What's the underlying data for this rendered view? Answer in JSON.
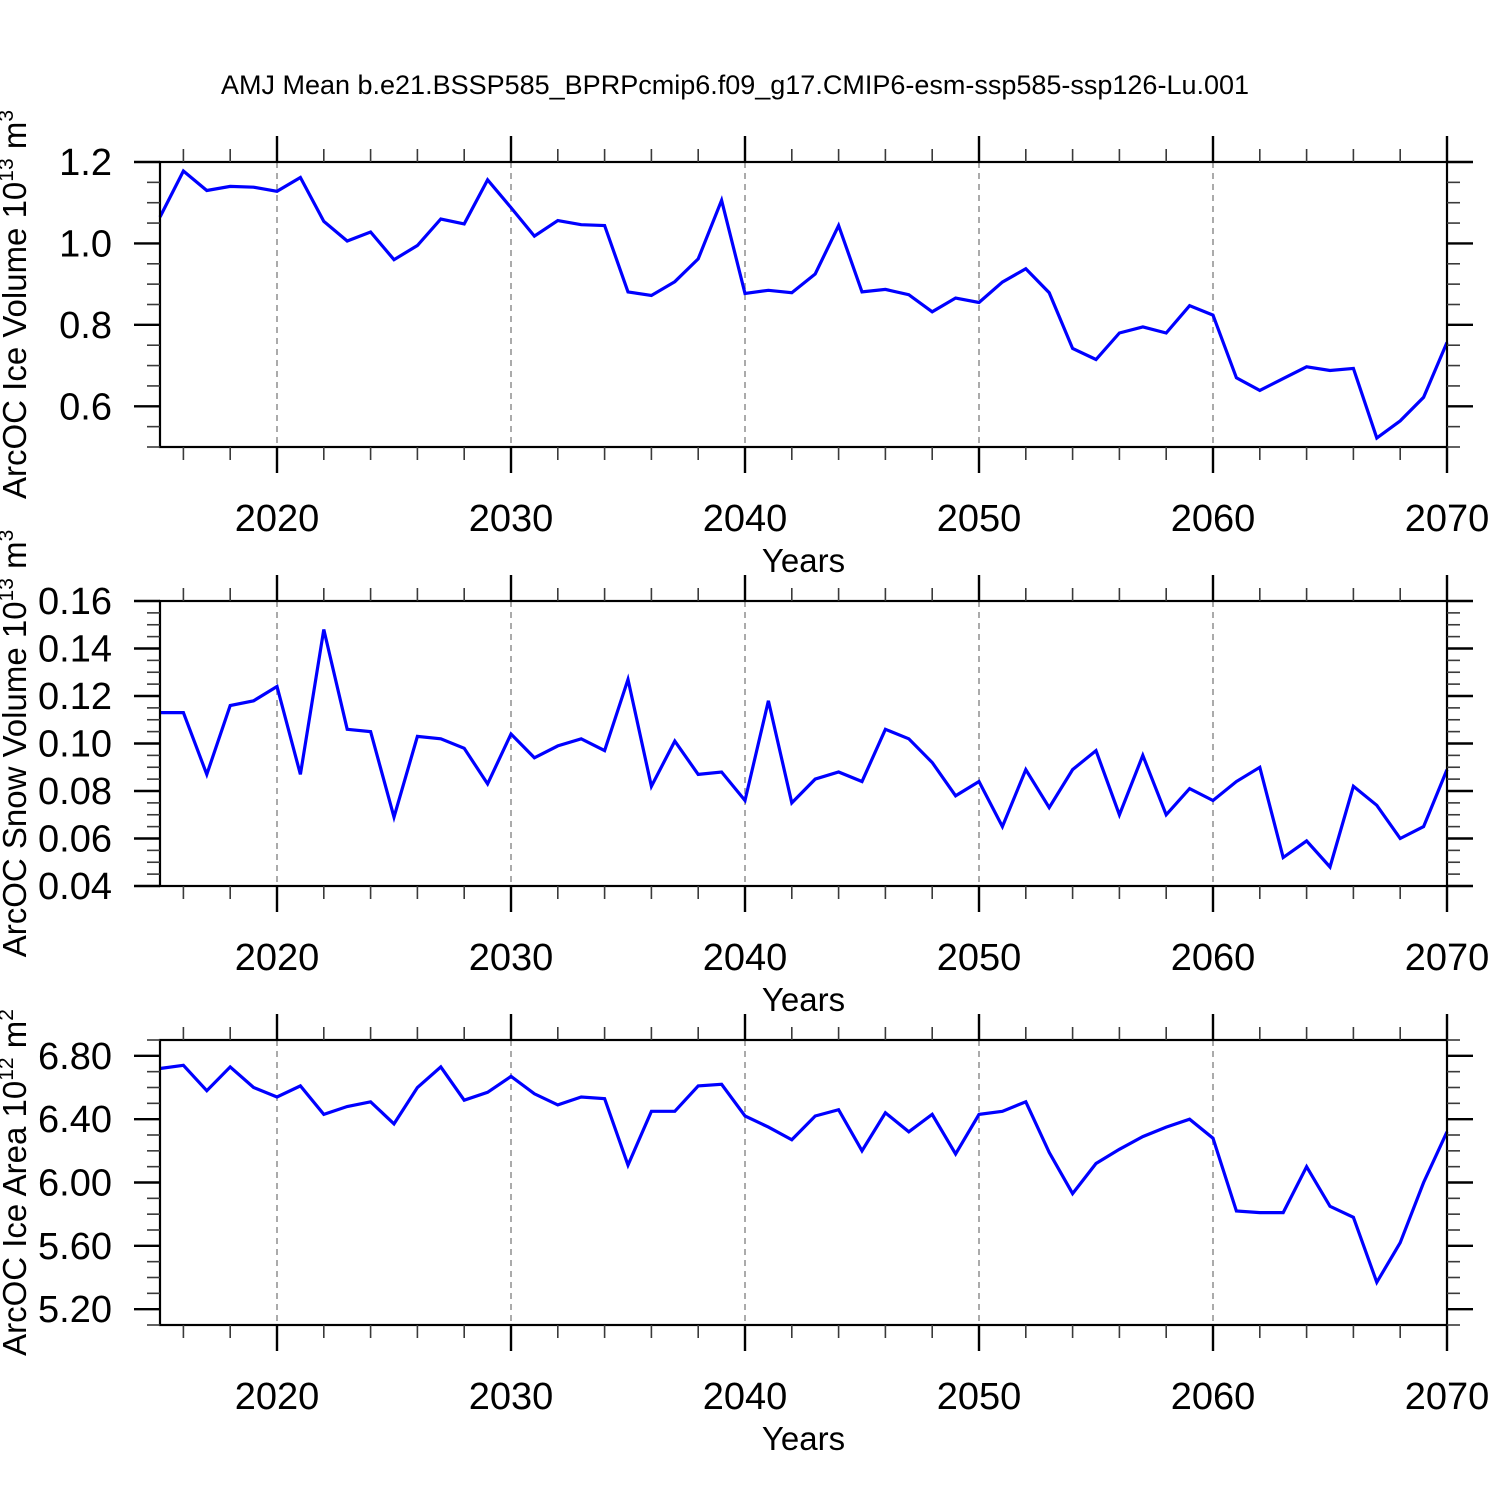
{
  "title": "AMJ Mean b.e21.BSSP585_BPRPcmip6.f09_g17.CMIP6-esm-ssp585-ssp126-Lu.001",
  "xlabel": "Years",
  "colors": {
    "line": "#0000ff",
    "grid": "#ababab",
    "axis": "#000000",
    "minor_tick": "#3a3a3a",
    "background": "#ffffff"
  },
  "chart_data": [
    {
      "type": "line",
      "panel": "ice-volume",
      "ylabel_parts": {
        "prefix": "ArcOC Ice Volume 10",
        "exp": "13",
        "unit": " m",
        "unit_exp": "3"
      },
      "xlabel": "Years",
      "xlim": [
        2015,
        2070
      ],
      "ylim": [
        0.5,
        1.2
      ],
      "yticks": [
        0.6,
        0.8,
        1.0,
        1.2
      ],
      "ytick_labels": [
        "0.6",
        "0.8",
        "1.0",
        "1.2"
      ],
      "y_minor_step": 0.05,
      "xticks": [
        2020,
        2030,
        2040,
        2050,
        2060,
        2070
      ],
      "xtick_labels": [
        "2020",
        "2030",
        "2040",
        "2050",
        "2060",
        "2070"
      ],
      "x_minor_step": 2,
      "gridlines_x": [
        2020,
        2030,
        2040,
        2050,
        2060
      ],
      "x": [
        2015,
        2016,
        2017,
        2018,
        2019,
        2020,
        2021,
        2022,
        2023,
        2024,
        2025,
        2026,
        2027,
        2028,
        2029,
        2030,
        2031,
        2032,
        2033,
        2034,
        2035,
        2036,
        2037,
        2038,
        2039,
        2040,
        2041,
        2042,
        2043,
        2044,
        2045,
        2046,
        2047,
        2048,
        2049,
        2050,
        2051,
        2052,
        2053,
        2054,
        2055,
        2056,
        2057,
        2058,
        2059,
        2060,
        2061,
        2062,
        2063,
        2064,
        2065,
        2066,
        2067,
        2068,
        2069,
        2070
      ],
      "values": [
        1.065,
        1.178,
        1.13,
        1.14,
        1.138,
        1.128,
        1.162,
        1.054,
        1.006,
        1.028,
        0.96,
        0.995,
        1.06,
        1.048,
        1.156,
        1.088,
        1.018,
        1.056,
        1.046,
        1.044,
        0.881,
        0.872,
        0.906,
        0.962,
        1.106,
        0.877,
        0.885,
        0.879,
        0.925,
        1.044,
        0.881,
        0.887,
        0.874,
        0.832,
        0.866,
        0.855,
        0.905,
        0.938,
        0.879,
        0.742,
        0.715,
        0.78,
        0.795,
        0.78,
        0.847,
        0.824,
        0.67,
        0.639,
        0.668,
        0.697,
        0.688,
        0.693,
        0.522,
        0.564,
        0.622,
        0.757
      ]
    },
    {
      "type": "line",
      "panel": "snow-volume",
      "ylabel_parts": {
        "prefix": "ArcOC Snow Volume 10",
        "exp": "13",
        "unit": " m",
        "unit_exp": "3"
      },
      "xlabel": "Years",
      "xlim": [
        2015,
        2070
      ],
      "ylim": [
        0.04,
        0.16
      ],
      "yticks": [
        0.04,
        0.06,
        0.08,
        0.1,
        0.12,
        0.14,
        0.16
      ],
      "ytick_labels": [
        "0.04",
        "0.06",
        "0.08",
        "0.10",
        "0.12",
        "0.14",
        "0.16"
      ],
      "y_minor_step": 0.005,
      "xticks": [
        2020,
        2030,
        2040,
        2050,
        2060,
        2070
      ],
      "xtick_labels": [
        "2020",
        "2030",
        "2040",
        "2050",
        "2060",
        "2070"
      ],
      "x_minor_step": 2,
      "gridlines_x": [
        2020,
        2030,
        2040,
        2050,
        2060
      ],
      "x": [
        2015,
        2016,
        2017,
        2018,
        2019,
        2020,
        2021,
        2022,
        2023,
        2024,
        2025,
        2026,
        2027,
        2028,
        2029,
        2030,
        2031,
        2032,
        2033,
        2034,
        2035,
        2036,
        2037,
        2038,
        2039,
        2040,
        2041,
        2042,
        2043,
        2044,
        2045,
        2046,
        2047,
        2048,
        2049,
        2050,
        2051,
        2052,
        2053,
        2054,
        2055,
        2056,
        2057,
        2058,
        2059,
        2060,
        2061,
        2062,
        2063,
        2064,
        2065,
        2066,
        2067,
        2068,
        2069,
        2070
      ],
      "values": [
        0.113,
        0.113,
        0.087,
        0.116,
        0.118,
        0.124,
        0.087,
        0.148,
        0.106,
        0.105,
        0.069,
        0.103,
        0.102,
        0.098,
        0.083,
        0.104,
        0.094,
        0.099,
        0.102,
        0.097,
        0.127,
        0.082,
        0.101,
        0.087,
        0.088,
        0.076,
        0.118,
        0.075,
        0.085,
        0.088,
        0.084,
        0.106,
        0.102,
        0.092,
        0.078,
        0.084,
        0.065,
        0.089,
        0.073,
        0.089,
        0.097,
        0.07,
        0.095,
        0.07,
        0.081,
        0.076,
        0.084,
        0.09,
        0.052,
        0.059,
        0.048,
        0.082,
        0.074,
        0.06,
        0.065,
        0.089
      ]
    },
    {
      "type": "line",
      "panel": "ice-area",
      "ylabel_parts": {
        "prefix": "ArcOC Ice Area 10",
        "exp": "12",
        "unit": " m",
        "unit_exp": "2"
      },
      "xlabel": "Years",
      "xlim": [
        2015,
        2070
      ],
      "ylim": [
        5.1,
        6.9
      ],
      "yticks": [
        5.2,
        5.6,
        6.0,
        6.4,
        6.8
      ],
      "ytick_labels": [
        "5.20",
        "5.60",
        "6.00",
        "6.40",
        "6.80"
      ],
      "y_minor_step": 0.1,
      "xticks": [
        2020,
        2030,
        2040,
        2050,
        2060,
        2070
      ],
      "xtick_labels": [
        "2020",
        "2030",
        "2040",
        "2050",
        "2060",
        "2070"
      ],
      "x_minor_step": 2,
      "gridlines_x": [
        2020,
        2030,
        2040,
        2050,
        2060
      ],
      "x": [
        2015,
        2016,
        2017,
        2018,
        2019,
        2020,
        2021,
        2022,
        2023,
        2024,
        2025,
        2026,
        2027,
        2028,
        2029,
        2030,
        2031,
        2032,
        2033,
        2034,
        2035,
        2036,
        2037,
        2038,
        2039,
        2040,
        2041,
        2042,
        2043,
        2044,
        2045,
        2046,
        2047,
        2048,
        2049,
        2050,
        2051,
        2052,
        2053,
        2054,
        2055,
        2056,
        2057,
        2058,
        2059,
        2060,
        2061,
        2062,
        2063,
        2064,
        2065,
        2066,
        2067,
        2068,
        2069,
        2070
      ],
      "values": [
        6.72,
        6.74,
        6.58,
        6.73,
        6.6,
        6.54,
        6.61,
        6.43,
        6.48,
        6.51,
        6.37,
        6.6,
        6.73,
        6.52,
        6.57,
        6.67,
        6.56,
        6.49,
        6.54,
        6.53,
        6.11,
        6.45,
        6.45,
        6.61,
        6.62,
        6.42,
        6.35,
        6.27,
        6.42,
        6.46,
        6.2,
        6.44,
        6.32,
        6.43,
        6.18,
        6.43,
        6.45,
        6.51,
        6.19,
        5.93,
        6.12,
        6.21,
        6.29,
        6.35,
        6.4,
        6.28,
        5.82,
        5.81,
        5.81,
        6.1,
        5.85,
        5.78,
        5.37,
        5.62,
        6.0,
        6.32
      ]
    }
  ]
}
